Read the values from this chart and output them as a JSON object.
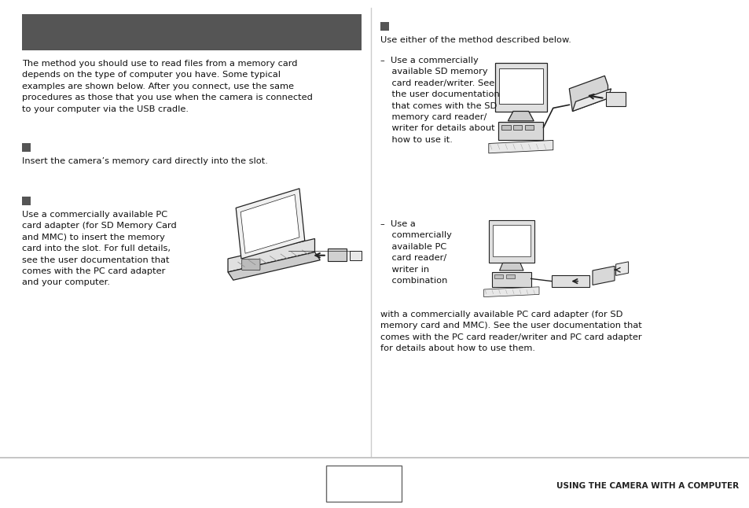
{
  "bg_color": "#ffffff",
  "header_color": "#555555",
  "divider_color": "#cccccc",
  "footer_line_color": "#bbbbbb",
  "footer_text": "USING THE CAMERA WITH A COMPUTER",
  "text_color": "#111111",
  "font_size": 8.2,
  "left_intro": "The method you should use to read files from a memory card\ndepends on the type of computer you have. Some typical\nexamples are shown below. After you connect, use the same\nprocedures as those that you use when the camera is connected\nto your computer via the USB cradle.",
  "bullet1_text": "Insert the camera’s memory card directly into the slot.",
  "bullet2_text": "Use a commercially available PC\ncard adapter (for SD Memory Card\nand MMC) to insert the memory\ncard into the slot. For full details,\nsee the user documentation that\ncomes with the PC card adapter\nand your computer.",
  "right_intro": "Use either of the method described below.",
  "right_b1": "–  Use a commercially\n    available SD memory\n    card reader/writer. See\n    the user documentation\n    that comes with the SD\n    memory card reader/\n    writer for details about\n    how to use it.",
  "right_b2": "–  Use a\n    commercially\n    available PC\n    card reader/\n    writer in\n    combination",
  "right_b3": "with a commercially available PC card adapter (for SD\nmemory card and MMC). See the user documentation that\ncomes with the PC card reader/writer and PC card adapter\nfor details about how to use them."
}
